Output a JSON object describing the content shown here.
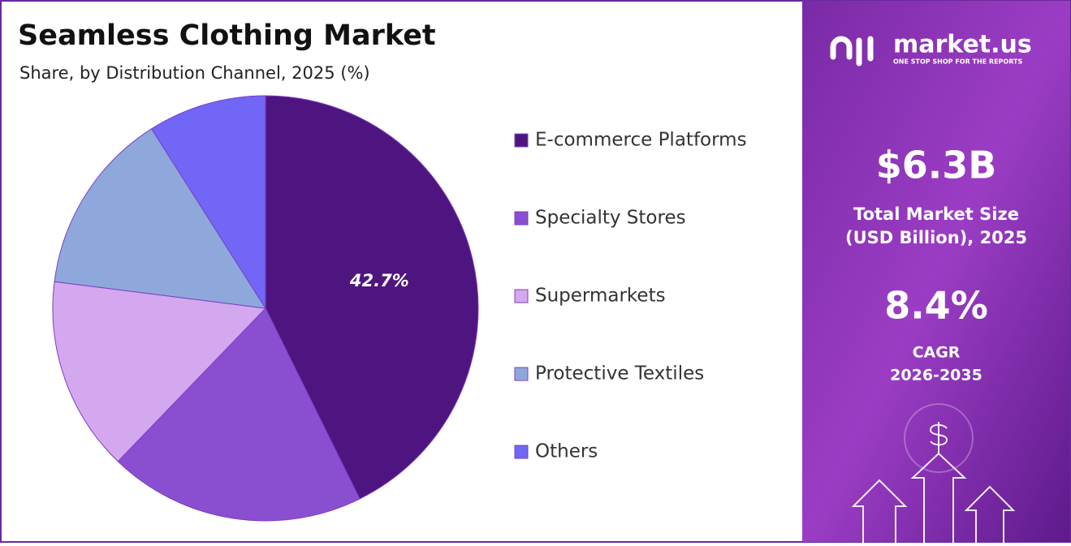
{
  "chart_data": {
    "type": "pie",
    "title": "Seamless Clothing Market",
    "subtitle": "Share, by Distribution Channel, 2025 (%)",
    "categories": [
      "E-commerce Platforms",
      "Specialty Stores",
      "Supermarkets",
      "Protective Textiles",
      "Others"
    ],
    "values": [
      42.7,
      19.5,
      14.8,
      14.0,
      9.0
    ],
    "value_labels": [
      "42.7%",
      null,
      null,
      null,
      null
    ],
    "colors": [
      "#4e1580",
      "#8a4fd0",
      "#d3a8ee",
      "#8fa8dc",
      "#7166f5"
    ],
    "legend": "right"
  },
  "panel": {
    "brand": "market.us",
    "tagline": "ONE STOP SHOP FOR THE REPORTS",
    "market_size": "$6.3B",
    "market_size_label": [
      "Total Market Size",
      "(USD Billion), 2025"
    ],
    "cagr": "8.4%",
    "cagr_label": [
      "CAGR",
      "2026-2035"
    ]
  }
}
